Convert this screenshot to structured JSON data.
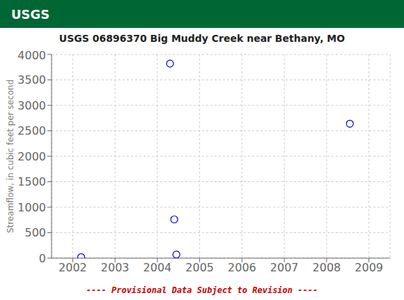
{
  "chart_data": {
    "type": "scatter",
    "title": "USGS 06896370 Big Muddy Creek near Bethany, MO",
    "y_label": "Streamflow, in cubic feet per second",
    "x": [
      2002.2,
      2004.3,
      2004.4,
      2004.45,
      2008.55
    ],
    "values": [
      20,
      3820,
      760,
      70,
      2640
    ],
    "color": "#0000CC",
    "marker": "circle",
    "xlim": [
      2001.5,
      2009.5
    ],
    "ylim": [
      0,
      4000
    ],
    "xticks": [
      2002,
      2003,
      2004,
      2005,
      2006,
      2007,
      2008,
      2009
    ],
    "yticks": [
      0,
      500,
      1000,
      1500,
      2000,
      2500,
      3000,
      3500,
      4000
    ],
    "grid": true,
    "annotations": [
      {
        "text": "USGS"
      },
      {
        "text": "---- Provisional Data Subject to Revision ----",
        "color": "#CC0000"
      }
    ]
  }
}
